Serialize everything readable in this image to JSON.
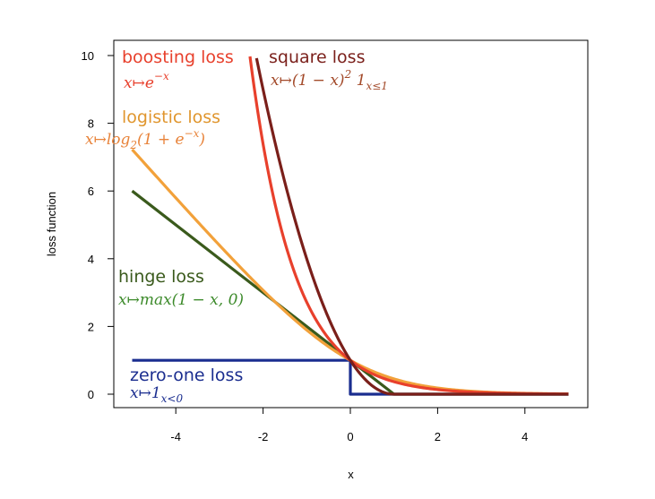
{
  "chart_data": {
    "type": "line",
    "title": "",
    "xlabel": "x",
    "ylabel": "loss function",
    "xlim": [
      -5.4,
      5.4
    ],
    "ylim": [
      -0.4,
      10.2
    ],
    "xticks": [
      -4,
      -2,
      0,
      2,
      4
    ],
    "yticks": [
      0,
      2,
      4,
      6,
      8,
      10
    ],
    "grid": false,
    "series": [
      {
        "key": "zero_one",
        "name": "zero-one loss",
        "formula": "x ↦ 1_{x<0}",
        "color": "#1a2d8f",
        "x": [
          -5,
          0,
          0,
          5
        ],
        "y": [
          1,
          1,
          0,
          0
        ]
      },
      {
        "key": "hinge",
        "name": "hinge loss",
        "formula": "x ↦ max(1 − x, 0)",
        "color": "#3a5a1c",
        "x": [
          -5,
          1,
          5
        ],
        "y": [
          6,
          0,
          0
        ]
      },
      {
        "key": "logistic",
        "name": "logistic loss",
        "formula": "x ↦ log₂(1 + e^{−x})",
        "color": "#f2a13a",
        "x": [
          -5,
          -4,
          -3,
          -2,
          -1,
          0,
          1,
          2,
          3,
          4,
          5
        ],
        "y": [
          7.22,
          5.79,
          4.39,
          3.07,
          1.89,
          1.0,
          0.45,
          0.18,
          0.07,
          0.03,
          0.01
        ]
      },
      {
        "key": "boosting",
        "name": "boosting loss",
        "formula": "x ↦ e^{−x}",
        "color": "#e8402c",
        "x": [
          -2.3,
          -2.0,
          -1.5,
          -1.0,
          -0.5,
          0,
          0.5,
          1,
          2,
          3,
          4,
          5
        ],
        "y": [
          9.97,
          7.39,
          4.48,
          2.72,
          1.65,
          1.0,
          0.61,
          0.37,
          0.14,
          0.05,
          0.02,
          0.01
        ]
      },
      {
        "key": "square",
        "name": "square loss",
        "formula": "x ↦ (1 − x)² 1_{x≤1}",
        "color": "#7a1f1a",
        "x": [
          -2.15,
          -2.0,
          -1.5,
          -1.0,
          -0.5,
          0,
          0.5,
          1,
          5
        ],
        "y": [
          9.92,
          9.0,
          6.25,
          4.0,
          2.25,
          1.0,
          0.25,
          0,
          0
        ]
      }
    ]
  },
  "annotations": {
    "boosting": {
      "name": "boosting loss",
      "formula": "x↦e",
      "sup": "−x",
      "color": "#e8402c"
    },
    "square": {
      "name": "square loss",
      "formula": "x↦(1 − x)",
      "sup": "2",
      "tail": " 1",
      "sub": "x≤1",
      "color": "#7a1f1a",
      "formula_color": "#a34a2a"
    },
    "logistic": {
      "name": "logistic loss",
      "formula": "x↦log",
      "sub": "2",
      "tail": "(1 + e",
      "sup": "−x",
      "close": ")",
      "color": "#e0962e",
      "formula_color": "#e8833a"
    },
    "hinge": {
      "name": "hinge loss",
      "formula": "x↦max(1 − x, 0)",
      "color": "#3a5a1c",
      "formula_color": "#3c8a2a"
    },
    "zero_one": {
      "name": "zero-one loss",
      "formula": "x↦1",
      "sub": "x<0",
      "color": "#1a2d8f"
    }
  }
}
